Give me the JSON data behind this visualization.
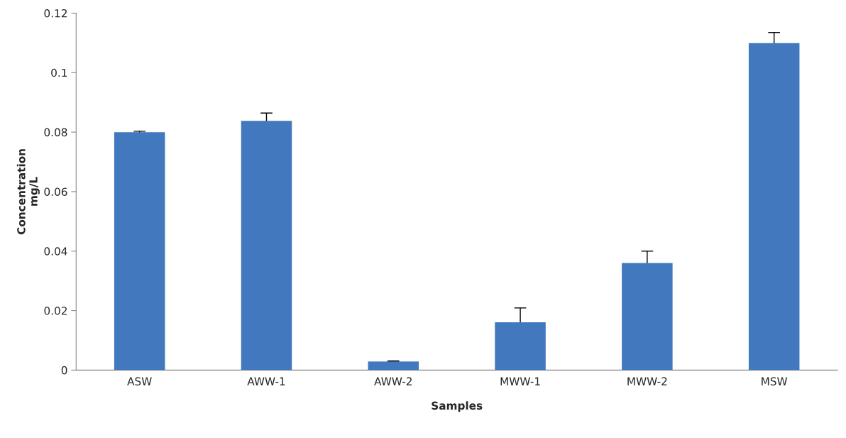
{
  "chart_data": {
    "type": "bar",
    "categories": [
      "ASW",
      "AWW-1",
      "AWW-2",
      "MWW-1",
      "MWW-2",
      "MSW"
    ],
    "values": [
      0.08,
      0.0838,
      0.0029,
      0.0161,
      0.036,
      0.1099
    ],
    "errors": [
      0.0003,
      0.0026,
      0.0002,
      0.0048,
      0.004,
      0.0036
    ],
    "color": "#4178be",
    "xlabel": "Samples",
    "ylabel": "Concentration\nmg/L",
    "ylim": [
      0,
      0.12
    ],
    "yticks": [
      0,
      0.02,
      0.04,
      0.06,
      0.08,
      0.1,
      0.12
    ],
    "grid": false,
    "legend": false
  }
}
